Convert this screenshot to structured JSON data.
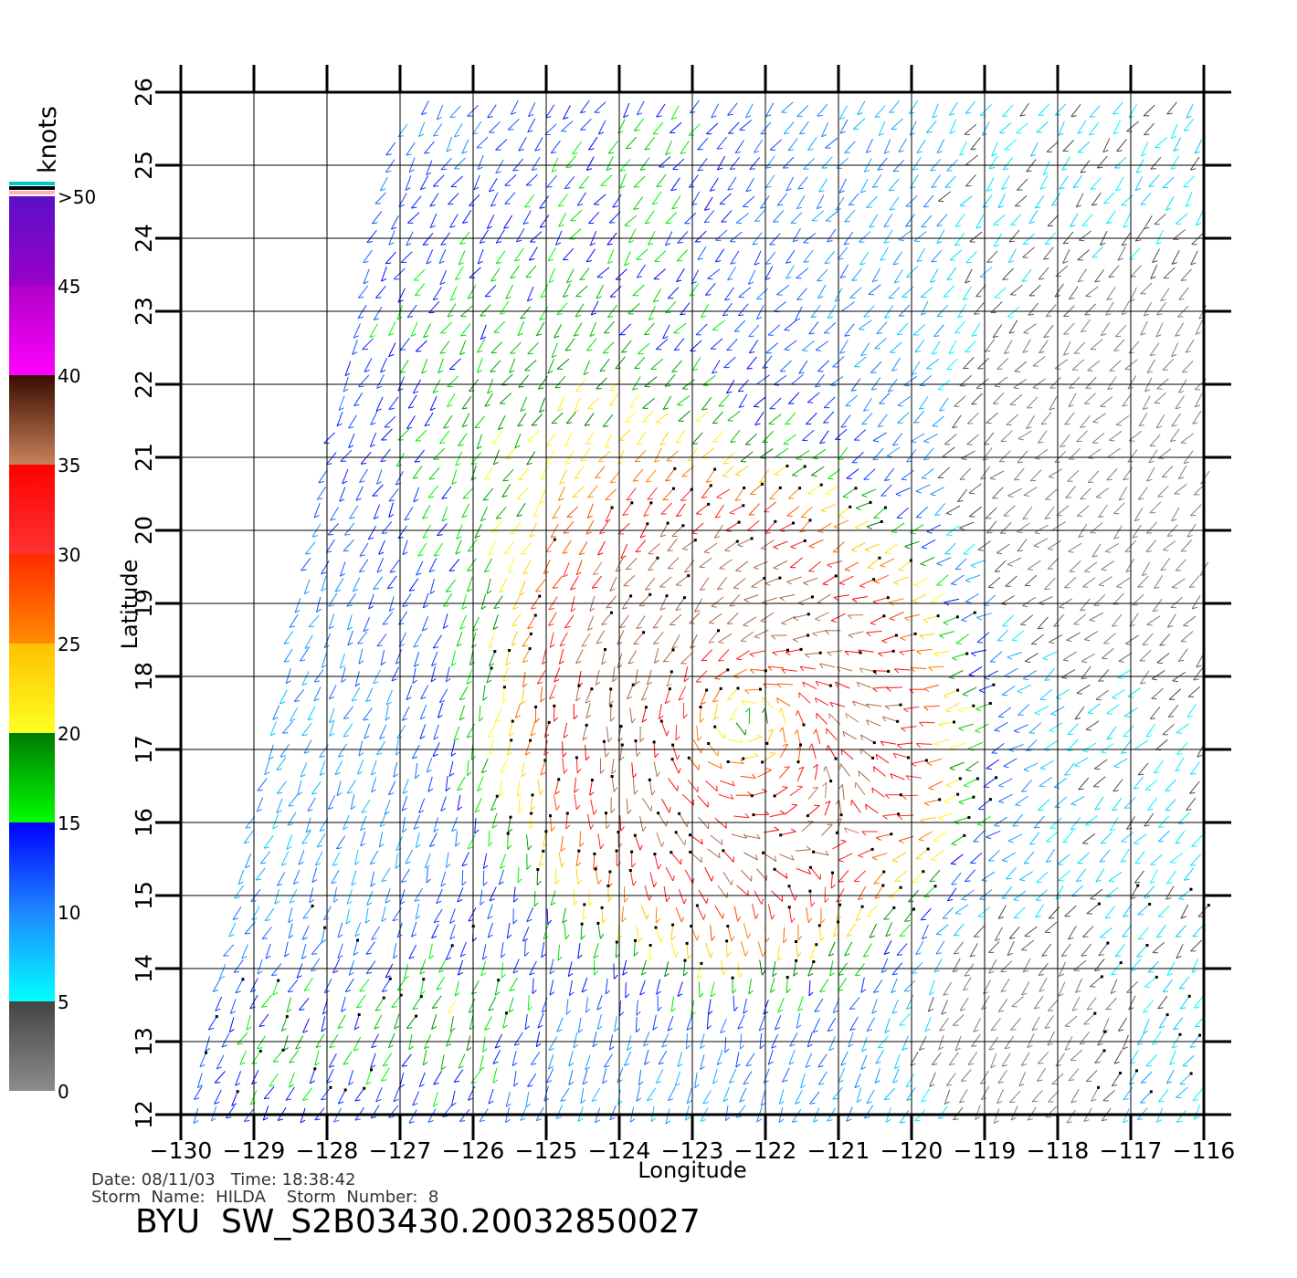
{
  "colorbar": {
    "unit_label": "knots",
    "ticks": [
      {
        "value": 0,
        "label": "0"
      },
      {
        "value": 5,
        "label": "5"
      },
      {
        "value": 10,
        "label": "10"
      },
      {
        "value": 15,
        "label": "15"
      },
      {
        "value": 20,
        "label": "20"
      },
      {
        "value": 25,
        "label": "25"
      },
      {
        "value": 30,
        "label": "30"
      },
      {
        "value": 35,
        "label": "35"
      },
      {
        "value": 40,
        "label": "40"
      },
      {
        "value": 45,
        "label": "45"
      },
      {
        "value": 50,
        "label": ">50"
      }
    ],
    "segments": [
      {
        "from": 0,
        "to": 5,
        "top_color": "#444444",
        "bottom_color": "#8c8c8c"
      },
      {
        "from": 5,
        "to": 10,
        "top_color": "#1e88ff",
        "bottom_color": "#00ffff"
      },
      {
        "from": 10,
        "to": 15,
        "top_color": "#0000ff",
        "bottom_color": "#1e88ff"
      },
      {
        "from": 15,
        "to": 20,
        "top_color": "#007a00",
        "bottom_color": "#00ff00"
      },
      {
        "from": 20,
        "to": 25,
        "top_color": "#ffc000",
        "bottom_color": "#ffff22"
      },
      {
        "from": 25,
        "to": 30,
        "top_color": "#ff2a00",
        "bottom_color": "#ff8c00"
      },
      {
        "from": 30,
        "to": 35,
        "top_color": "#ff0000",
        "bottom_color": "#ff3333"
      },
      {
        "from": 35,
        "to": 40,
        "top_color": "#3a0a00",
        "bottom_color": "#c8825a"
      },
      {
        "from": 40,
        "to": 45,
        "top_color": "#b000c8",
        "bottom_color": "#ff00ff"
      },
      {
        "from": 45,
        "to": 50,
        "top_color": "#5a10c8",
        "bottom_color": "#9a00c8"
      }
    ],
    "cap_colors": [
      "#00c8c8",
      "#000000",
      "#ffb4b4"
    ]
  },
  "map": {
    "xlabel": "Longitude",
    "ylabel": "Latitude",
    "lon_range": [
      -130,
      -116
    ],
    "lat_range": [
      12,
      26
    ],
    "lon_ticks": [
      -130,
      -129,
      -128,
      -127,
      -126,
      -125,
      -124,
      -123,
      -122,
      -121,
      -120,
      -119,
      -118,
      -117,
      -116
    ],
    "lat_ticks": [
      12,
      13,
      14,
      15,
      16,
      17,
      18,
      19,
      20,
      21,
      22,
      23,
      24,
      25,
      26
    ],
    "grid": true,
    "swath_west_edge": [
      {
        "lon": -129.8,
        "lat": 12.0
      },
      {
        "lon": -127.0,
        "lat": 25.5
      },
      {
        "lon": -126.5,
        "lat": 26.0
      }
    ],
    "storm_center": {
      "lon": -122.3,
      "lat": 17.4
    },
    "wind_peak_knots": 36
  },
  "info": {
    "date_line": "Date: 08/11/03   Time: 18:38:42",
    "storm_line": "Storm  Name:  HILDA    Storm  Number:  8",
    "product_line": "BYU  SW_S2B03430.20032850027"
  }
}
